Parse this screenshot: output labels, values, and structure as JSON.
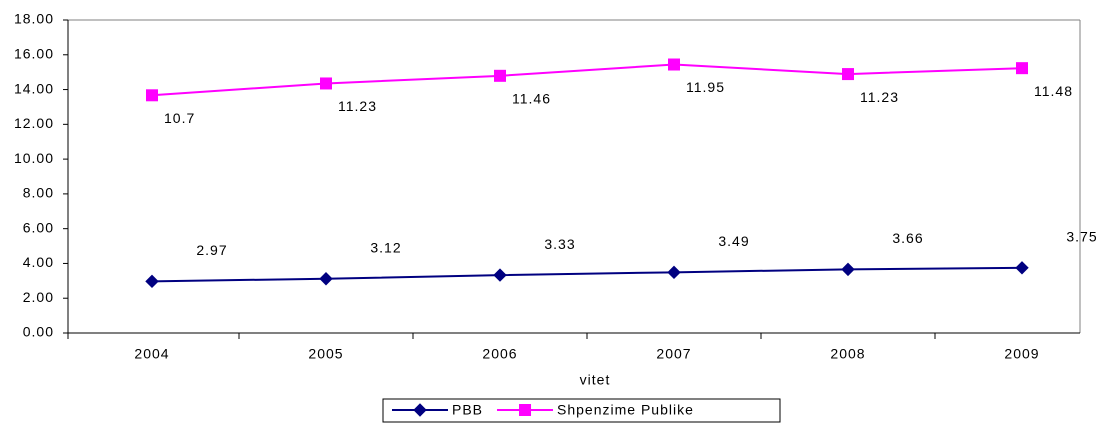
{
  "chart_data": {
    "type": "line",
    "stacked": true,
    "x_label": "vitet",
    "categories": [
      "2004",
      "2005",
      "2006",
      "2007",
      "2008",
      "2009"
    ],
    "series": [
      {
        "name": "PBB",
        "color": "#000080",
        "marker": "diamond",
        "values": [
          2.97,
          3.12,
          3.33,
          3.49,
          3.66,
          3.75
        ]
      },
      {
        "name": "Shpenzime Publike",
        "color": "#ff00ff",
        "marker": "square",
        "values": [
          10.7,
          11.23,
          11.46,
          11.95,
          11.23,
          11.48
        ]
      }
    ],
    "ylim": [
      0,
      18
    ],
    "yticks": [
      {
        "value": 0,
        "label": "0.00"
      },
      {
        "value": 2,
        "label": "2.00"
      },
      {
        "value": 4,
        "label": "4.00"
      },
      {
        "value": 6,
        "label": "6.00"
      },
      {
        "value": 8,
        "label": "8.00"
      },
      {
        "value": 10,
        "label": "10.00"
      },
      {
        "value": 12,
        "label": "12.00"
      },
      {
        "value": 14,
        "label": "14.00"
      },
      {
        "value": 16,
        "label": "16.00"
      },
      {
        "value": 18,
        "label": "18.00"
      }
    ],
    "legend": "bottom"
  }
}
